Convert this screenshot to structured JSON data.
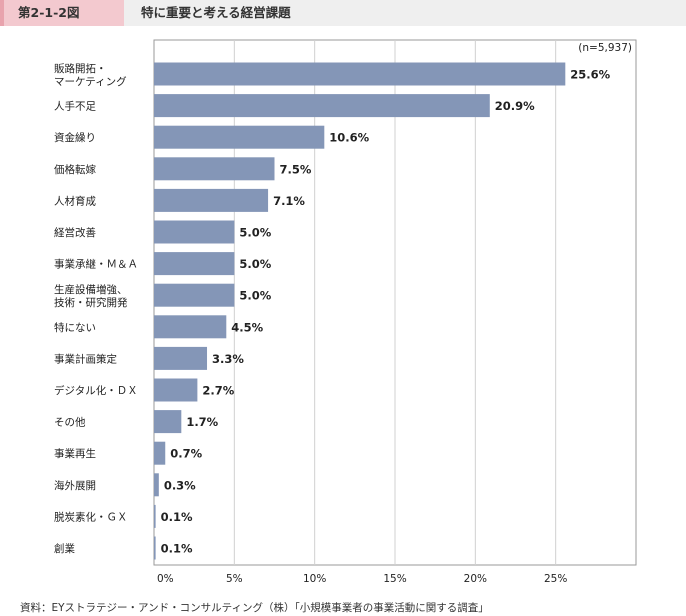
{
  "header": {
    "figure_label": "第2-1-2図",
    "title": "特に重要と考える経営課題"
  },
  "chart_data": {
    "type": "bar",
    "orientation": "horizontal",
    "title": "特に重要と考える経営課題",
    "note": "(n=5,937)",
    "categories": [
      "販路開拓・\nマーケティング",
      "人手不足",
      "資金繰り",
      "価格転嫁",
      "人材育成",
      "経営改善",
      "事業承継・Ｍ＆Ａ",
      "生産設備増強、\n技術・研究開発",
      "特にない",
      "事業計画策定",
      "デジタル化・ＤＸ",
      "その他",
      "事業再生",
      "海外展開",
      "脱炭素化・ＧＸ",
      "創業"
    ],
    "values": [
      25.6,
      20.9,
      10.6,
      7.5,
      7.1,
      5.0,
      5.0,
      5.0,
      4.5,
      3.3,
      2.7,
      1.7,
      0.7,
      0.3,
      0.1,
      0.1
    ],
    "value_labels": [
      "25.6%",
      "20.9%",
      "10.6%",
      "7.5%",
      "7.1%",
      "5.0%",
      "5.0%",
      "5.0%",
      "4.5%",
      "3.3%",
      "2.7%",
      "1.7%",
      "0.7%",
      "0.3%",
      "0.1%",
      "0.1%"
    ],
    "xticks": [
      0,
      5,
      10,
      15,
      20,
      25
    ],
    "xtick_labels": [
      "0%",
      "5%",
      "10%",
      "15%",
      "20%",
      "25%"
    ],
    "xlim": [
      0,
      30
    ],
    "grid": true,
    "bar_color": "#8496b7"
  },
  "source": "資料：EYストラテジー・アンド・コンサルティング（株）「小規模事業者の事業活動に関する調査」"
}
